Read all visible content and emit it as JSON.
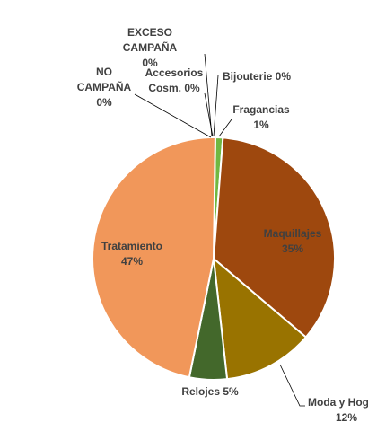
{
  "chart_data": {
    "type": "pie",
    "title": "",
    "slices": [
      {
        "label": "Fragancias",
        "pct_label": "1%",
        "value": 1,
        "color": "#70B842"
      },
      {
        "label": "Maquillajes",
        "pct_label": "35%",
        "value": 35,
        "color": "#9E480E"
      },
      {
        "label": "Moda y Hog",
        "pct_label": "12%",
        "value": 12,
        "color": "#997300"
      },
      {
        "label": "Relojes",
        "pct_label": "5%",
        "value": 5,
        "color": "#43682B"
      },
      {
        "label": "Tratamiento",
        "pct_label": "47%",
        "value": 47,
        "color": "#F1975A"
      },
      {
        "label": "NO CAMPAÑA",
        "pct_label": "0%",
        "value": 0.0,
        "color": "#5B9BD5"
      },
      {
        "label": "EXCESO CAMPAÑA",
        "pct_label": "0%",
        "value": 0.0,
        "color": "#ED7D31"
      },
      {
        "label": "Accesorios Cosm.",
        "pct_label": "0%",
        "value": 0.0,
        "color": "#A5A5A5"
      },
      {
        "label": "Bijouterie",
        "pct_label": "0%",
        "value": 0.0,
        "color": "#FFC000"
      }
    ]
  }
}
